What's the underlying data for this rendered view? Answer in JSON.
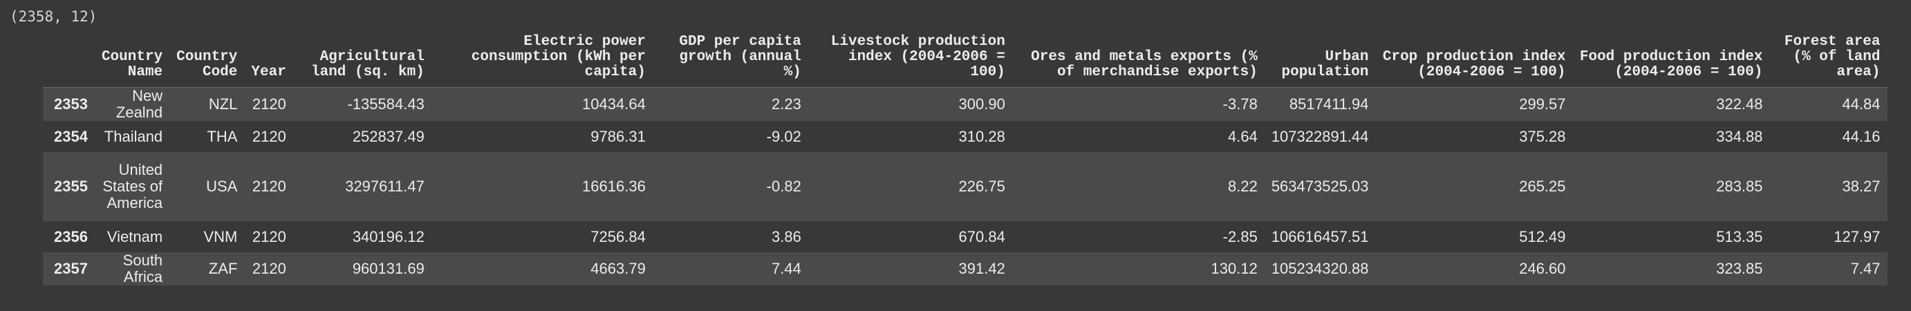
{
  "output": {
    "shape_text": "(2358, 12)"
  },
  "table": {
    "columns": [
      "",
      "Country Name",
      "Country Code",
      "Year",
      "Agricultural land (sq. km)",
      "Electric power consumption (kWh per capita)",
      "GDP per capita growth (annual %)",
      "Livestock production index (2004-2006 = 100)",
      "Ores and metals exports (% of merchandise exports)",
      "Urban population",
      "Crop production index (2004-2006 = 100)",
      "Food production index (2004-2006 = 100)",
      "Forest area (% of land area)"
    ],
    "rows": [
      [
        "2353",
        "New Zealnd",
        "NZL",
        "2120",
        "-135584.43",
        "10434.64",
        "2.23",
        "300.90",
        "-3.78",
        "8517411.94",
        "299.57",
        "322.48",
        "44.84"
      ],
      [
        "2354",
        "Thailand",
        "THA",
        "2120",
        "252837.49",
        "9786.31",
        "-9.02",
        "310.28",
        "4.64",
        "107322891.44",
        "375.28",
        "334.88",
        "44.16"
      ],
      [
        "2355",
        "United States of America",
        "USA",
        "2120",
        "3297611.47",
        "16616.36",
        "-0.82",
        "226.75",
        "8.22",
        "563473525.03",
        "265.25",
        "283.85",
        "38.27"
      ],
      [
        "2356",
        "Vietnam",
        "VNM",
        "2120",
        "340196.12",
        "7256.84",
        "3.86",
        "670.84",
        "-2.85",
        "106616457.51",
        "512.49",
        "513.35",
        "127.97"
      ],
      [
        "2357",
        "South Africa",
        "ZAF",
        "2120",
        "960131.69",
        "4663.79",
        "7.44",
        "391.42",
        "130.12",
        "105234320.88",
        "246.60",
        "323.85",
        "7.47"
      ]
    ]
  },
  "colors": {
    "background": "#383838",
    "row_stripe": "#4a4a4a",
    "text": "#ececec"
  }
}
